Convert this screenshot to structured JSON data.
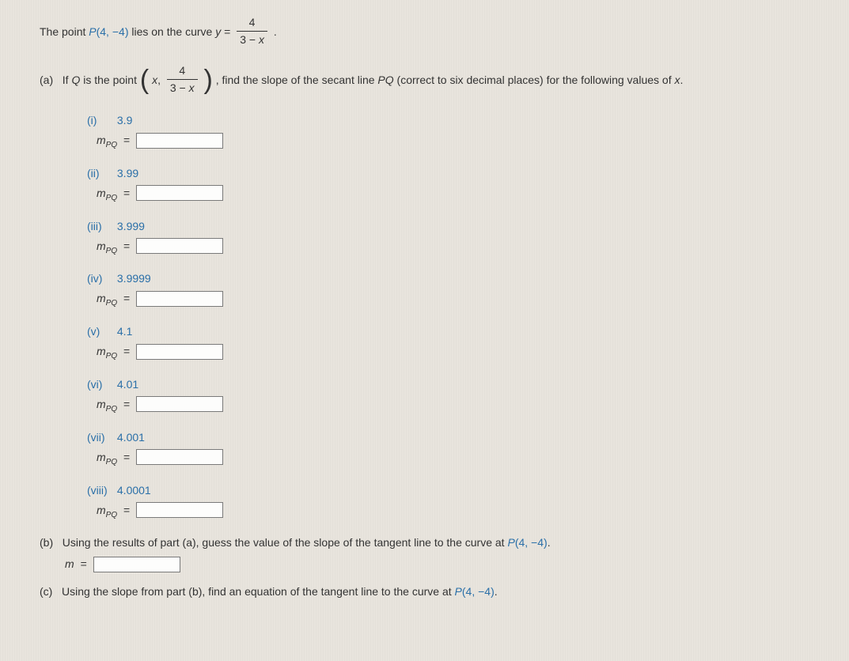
{
  "intro": {
    "prefix": "The point ",
    "point_label": "P",
    "point_coords_open": "(4, ",
    "point_coords_neg": "−4",
    "point_coords_close": ")",
    "mid": " lies on the curve ",
    "y": "y",
    "equals": " = ",
    "frac_num": "4",
    "frac_den_a": "3 − ",
    "frac_den_x": "x",
    "period": "."
  },
  "partA": {
    "label": "(a)",
    "t1": "If ",
    "Q": "Q",
    "t2": " is the point ",
    "paren_x": "x",
    "comma": ", ",
    "frac_num": "4",
    "frac_den_a": "3 − ",
    "frac_den_x": "x",
    "t3": ", find the slope of the secant line ",
    "PQ": "PQ",
    "t4": " (correct to six decimal places) for the following values of ",
    "xvar": "x",
    "t5": ".",
    "slope_m": "m",
    "slope_sub": "PQ",
    "slope_eq": "=",
    "items": [
      {
        "roman": "(i)",
        "x": "3.9"
      },
      {
        "roman": "(ii)",
        "x": "3.99"
      },
      {
        "roman": "(iii)",
        "x": "3.999"
      },
      {
        "roman": "(iv)",
        "x": "3.9999"
      },
      {
        "roman": "(v)",
        "x": "4.1"
      },
      {
        "roman": "(vi)",
        "x": "4.01"
      },
      {
        "roman": "(vii)",
        "x": "4.001"
      },
      {
        "roman": "(viii)",
        "x": "4.0001"
      }
    ]
  },
  "partB": {
    "label": "(b)",
    "text1": "Using the results of part (a), guess the value of the slope of the tangent line to the curve at ",
    "P": "P",
    "coords_open": "(4, ",
    "coords_neg": "−4",
    "coords_close": ")",
    "period": ".",
    "m": "m",
    "eq": "="
  },
  "partC": {
    "label": "(c)",
    "text1": "Using the slope from part (b), find an equation of the tangent line to the curve at ",
    "P": "P",
    "coords_open": "(4, ",
    "coords_neg": "−4",
    "coords_close": ")",
    "period": "."
  }
}
